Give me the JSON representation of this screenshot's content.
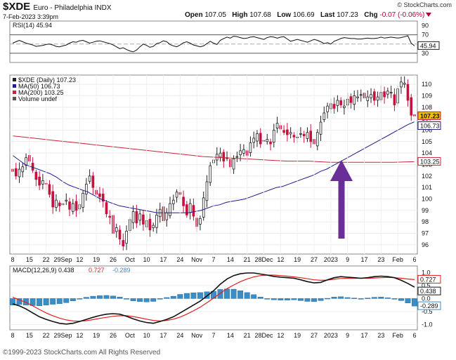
{
  "header": {
    "symbol": "$XDE",
    "name": "Euro - Philadelphia INDX",
    "datetime": "7-Feb-2023 3:39pm",
    "site": "© StockCharts.com",
    "open_label": "Open",
    "open": "107.05",
    "high_label": "High",
    "high": "107.68",
    "low_label": "Low",
    "low": "106.69",
    "last_label": "Last",
    "last": "107.23",
    "chg_label": "Chg",
    "chg": "-0.07 (-0.06%)"
  },
  "footer": {
    "copyright": "©1999-2023 StockCharts.com All Rights Reserved"
  },
  "colors": {
    "up": "#222222",
    "down": "#c8103e",
    "ma50": "#1e1e8c",
    "ma200": "#c8263a",
    "rsi": "#111111",
    "macd": "#111111",
    "signal": "#e02020",
    "hist": "#3a8ec8",
    "arrow": "#6a2e98"
  },
  "chart_data": [
    {
      "type": "line",
      "panel": "rsi",
      "legend": "RSI(14) 45.94",
      "last_label": "45.94",
      "y_ticks": [
        "90",
        "70",
        "50",
        "30"
      ],
      "ylim": [
        10,
        100
      ],
      "levels": [
        70,
        30
      ],
      "values": [
        52,
        55,
        58,
        55,
        52,
        50,
        48,
        45,
        46,
        47,
        49,
        50,
        48,
        45,
        44,
        46,
        48,
        52,
        55,
        54,
        57,
        58,
        55,
        52,
        54,
        56,
        57,
        55,
        53,
        51,
        48,
        44,
        40,
        42,
        38,
        35,
        33,
        37,
        44,
        50,
        47,
        43,
        45,
        51,
        53,
        57,
        55,
        49,
        46,
        44,
        48,
        53,
        55,
        52,
        48,
        46,
        44,
        46,
        51,
        56,
        52,
        49,
        58,
        62,
        65,
        63,
        67,
        66,
        64,
        62,
        63,
        65,
        66,
        64,
        62,
        60,
        64,
        66,
        65,
        63,
        65,
        66,
        61,
        56,
        58,
        60,
        58,
        56,
        54,
        57,
        60,
        58,
        55,
        51,
        53,
        50,
        56,
        59,
        62,
        64,
        63,
        62,
        62,
        61,
        61,
        62,
        63,
        62,
        62,
        63,
        65,
        63,
        64,
        65,
        64,
        63,
        64,
        66,
        68,
        52,
        46
      ]
    },
    {
      "type": "candlestick",
      "panel": "price",
      "legend": [
        "$XDE (Daily) 107.23",
        "MA(50) 106.73",
        "MA(200) 103.25",
        "Volume undef"
      ],
      "last_labels": [
        "107.23",
        "106.73",
        "103.25"
      ],
      "y_ticks": [
        "110",
        "109",
        "108",
        "107",
        "106",
        "105",
        "104",
        "103",
        "102",
        "101",
        "100",
        "99",
        "98",
        "97",
        "96"
      ],
      "ylim": [
        95.2,
        110.8
      ],
      "x_ticks": [
        "8",
        "15",
        "22",
        "29Sep",
        "12",
        "19",
        "26",
        "Oct",
        "10",
        "17",
        "24",
        "Nov",
        "7",
        "14",
        "21",
        "28Dec",
        "12",
        "19",
        "27",
        "2023",
        "9",
        "17",
        "23",
        "Feb",
        "6"
      ],
      "closes": [
        102.4,
        102.0,
        102.6,
        102.8,
        103.6,
        103.3,
        102.5,
        101.7,
        101.2,
        101.6,
        101.3,
        100.4,
        99.3,
        99.9,
        99.4,
        99.6,
        99.9,
        99.1,
        99.6,
        99.0,
        99.5,
        100.5,
        101.3,
        102.0,
        101.0,
        100.4,
        100.2,
        99.8,
        98.7,
        98.4,
        97.0,
        97.5,
        96.5,
        95.9,
        97.2,
        98.2,
        98.9,
        97.9,
        98.7,
        97.8,
        98.1,
        97.3,
        97.7,
        98.6,
        99.1,
        98.1,
        98.8,
        99.6,
        99.9,
        100.6,
        100.4,
        99.4,
        98.6,
        99.6,
        98.5,
        97.6,
        98.3,
        100.1,
        101.5,
        102.9,
        103.4,
        103.9,
        104.0,
        103.3,
        103.6,
        102.8,
        103.5,
        103.7,
        104.2,
        104.3,
        103.8,
        104.9,
        105.3,
        105.7,
        104.8,
        105.1,
        105.2,
        104.8,
        106.0,
        106.6,
        106.1,
        105.8,
        105.6,
        105.8,
        105.4,
        105.4,
        105.7,
        105.5,
        105.8,
        105.0,
        104.8,
        105.8,
        106.7,
        107.5,
        108.1,
        108.3,
        107.9,
        108.6,
        108.2,
        108.1,
        108.7,
        108.4,
        109.0,
        108.9,
        109.1,
        108.8,
        108.9,
        109.1,
        108.6,
        108.9,
        109.3,
        108.9,
        109.4,
        109.3,
        108.2,
        109.6,
        110.2,
        110.1,
        108.6,
        107.3,
        107.23
      ],
      "ma50": [
        103.8,
        103.4,
        103.0,
        102.8,
        102.6,
        102.4,
        102.2,
        101.9,
        101.5,
        101.2,
        101.0,
        100.8,
        100.6,
        100.3,
        100.0,
        99.8,
        99.6,
        99.4,
        99.3,
        99.2,
        99.1,
        99.0,
        98.9,
        98.8,
        98.8,
        98.8,
        98.8,
        98.8,
        98.8,
        98.9,
        99.0,
        99.2,
        99.4,
        99.5,
        99.7,
        99.8,
        99.9,
        100.0,
        100.2,
        100.4,
        100.6,
        100.8,
        101.0,
        101.1,
        101.3,
        101.5,
        101.7,
        101.9,
        102.1,
        102.4,
        102.6,
        102.9,
        103.2,
        103.5,
        103.8,
        104.1,
        104.4,
        104.7,
        105.0,
        105.3,
        105.6,
        105.9,
        106.2,
        106.5,
        106.73
      ],
      "ma200": [
        105.5,
        105.3,
        105.1,
        104.9,
        104.7,
        104.5,
        104.3,
        104.1,
        103.9,
        103.7,
        103.6,
        103.5,
        103.4,
        103.3,
        103.3,
        103.2,
        103.2,
        103.2,
        103.2,
        103.25
      ],
      "annotations": [
        "purple arrow pointing up to the MA(50) / MA(200) crossover in early January 2023"
      ]
    },
    {
      "type": "line",
      "panel": "macd",
      "legend": [
        "MACD(12,26,9) 0.438",
        "0.727",
        "-0.289"
      ],
      "last_labels": [
        "0.727",
        "0.438",
        "-0.289"
      ],
      "y_ticks": [
        "1.0",
        "0.5",
        "0.0",
        "-0.5",
        "-1.0"
      ],
      "ylim": [
        -1.2,
        1.25
      ],
      "macd": [
        -0.2,
        -0.28,
        -0.4,
        -0.55,
        -0.7,
        -0.8,
        -0.88,
        -0.95,
        -0.98,
        -0.95,
        -0.88,
        -0.8,
        -0.72,
        -0.65,
        -0.6,
        -0.58,
        -0.6,
        -0.68,
        -0.78,
        -0.86,
        -0.92,
        -0.95,
        -0.88,
        -0.8,
        -0.7,
        -0.55,
        -0.4,
        -0.25,
        -0.1,
        0.1,
        0.3,
        0.55,
        0.75,
        0.88,
        0.95,
        0.98,
        0.98,
        0.94,
        0.9,
        0.85,
        0.82,
        0.8,
        0.78,
        0.72,
        0.65,
        0.6,
        0.62,
        0.72,
        0.8,
        0.84,
        0.82,
        0.8,
        0.78,
        0.8,
        0.84,
        0.86,
        0.84,
        0.8,
        0.7,
        0.58,
        0.438
      ],
      "signal": [
        0.05,
        -0.05,
        -0.15,
        -0.28,
        -0.42,
        -0.55,
        -0.66,
        -0.75,
        -0.82,
        -0.86,
        -0.87,
        -0.85,
        -0.81,
        -0.76,
        -0.72,
        -0.68,
        -0.66,
        -0.66,
        -0.69,
        -0.74,
        -0.79,
        -0.84,
        -0.86,
        -0.84,
        -0.79,
        -0.71,
        -0.6,
        -0.47,
        -0.33,
        -0.16,
        0.02,
        0.2,
        0.38,
        0.52,
        0.65,
        0.75,
        0.83,
        0.88,
        0.9,
        0.9,
        0.88,
        0.86,
        0.83,
        0.8,
        0.76,
        0.72,
        0.7,
        0.71,
        0.74,
        0.77,
        0.78,
        0.78,
        0.78,
        0.78,
        0.79,
        0.8,
        0.81,
        0.8,
        0.78,
        0.75,
        0.727
      ],
      "histogram_last": -0.289
    }
  ]
}
